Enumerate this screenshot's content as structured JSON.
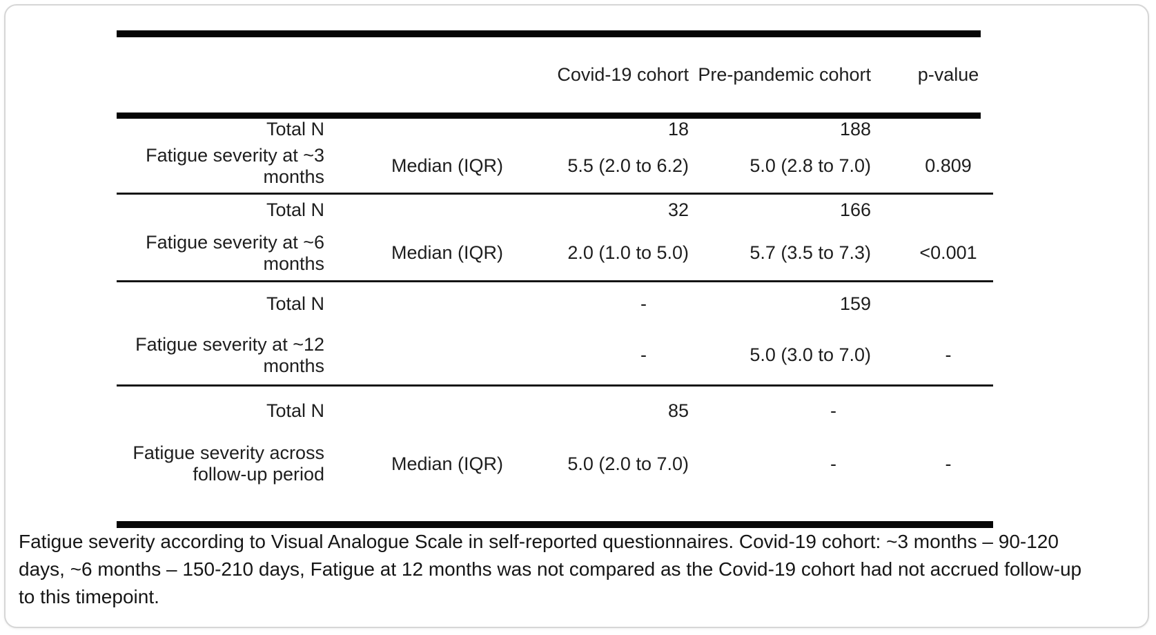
{
  "page": {
    "caption": "Fatigue severity according to Visual Analogue Scale in self-reported questionnaires. Covid-19 cohort: ~3 months – 90-120 days, ~6 months – 150-210 days, Fatigue at 12 months was not compared as the Covid-19 cohort had not accrued follow-up to this timepoint."
  },
  "table": {
    "header": {
      "covid": "Covid-19 cohort",
      "pre": "Pre-pandemic cohort",
      "p": "p-value"
    },
    "groups": [
      {
        "label": "Fatigue severity at ~3 months",
        "total_label": "Total N",
        "total_covid": "18",
        "total_pre": "188",
        "total_p": "",
        "stat": "Median (IQR)",
        "median_covid": "5.5 (2.0 to 6.2)",
        "median_pre": "5.0 (2.8 to 7.0)",
        "median_p": "0.809"
      },
      {
        "label": "Fatigue severity at ~6 months",
        "total_label": "Total N",
        "total_covid": "32",
        "total_pre": "166",
        "total_p": "",
        "stat": "Median (IQR)",
        "median_covid": "2.0 (1.0 to 5.0)",
        "median_pre": "5.7 (3.5 to 7.3)",
        "median_p": "<0.001"
      },
      {
        "label": "Fatigue severity at ~12 months",
        "total_label": "Total N",
        "total_covid": "-",
        "total_pre": "159",
        "total_p": "",
        "stat": "",
        "median_covid": "-",
        "median_pre": "5.0 (3.0 to 7.0)",
        "median_p": "-"
      },
      {
        "label": "Fatigue severity across follow-up period",
        "total_label": "Total N",
        "total_covid": "85",
        "total_pre": "-",
        "total_p": "",
        "stat": "Median (IQR)",
        "median_covid": "5.0 (2.0 to 7.0)",
        "median_pre": "-",
        "median_p": "-"
      }
    ]
  }
}
